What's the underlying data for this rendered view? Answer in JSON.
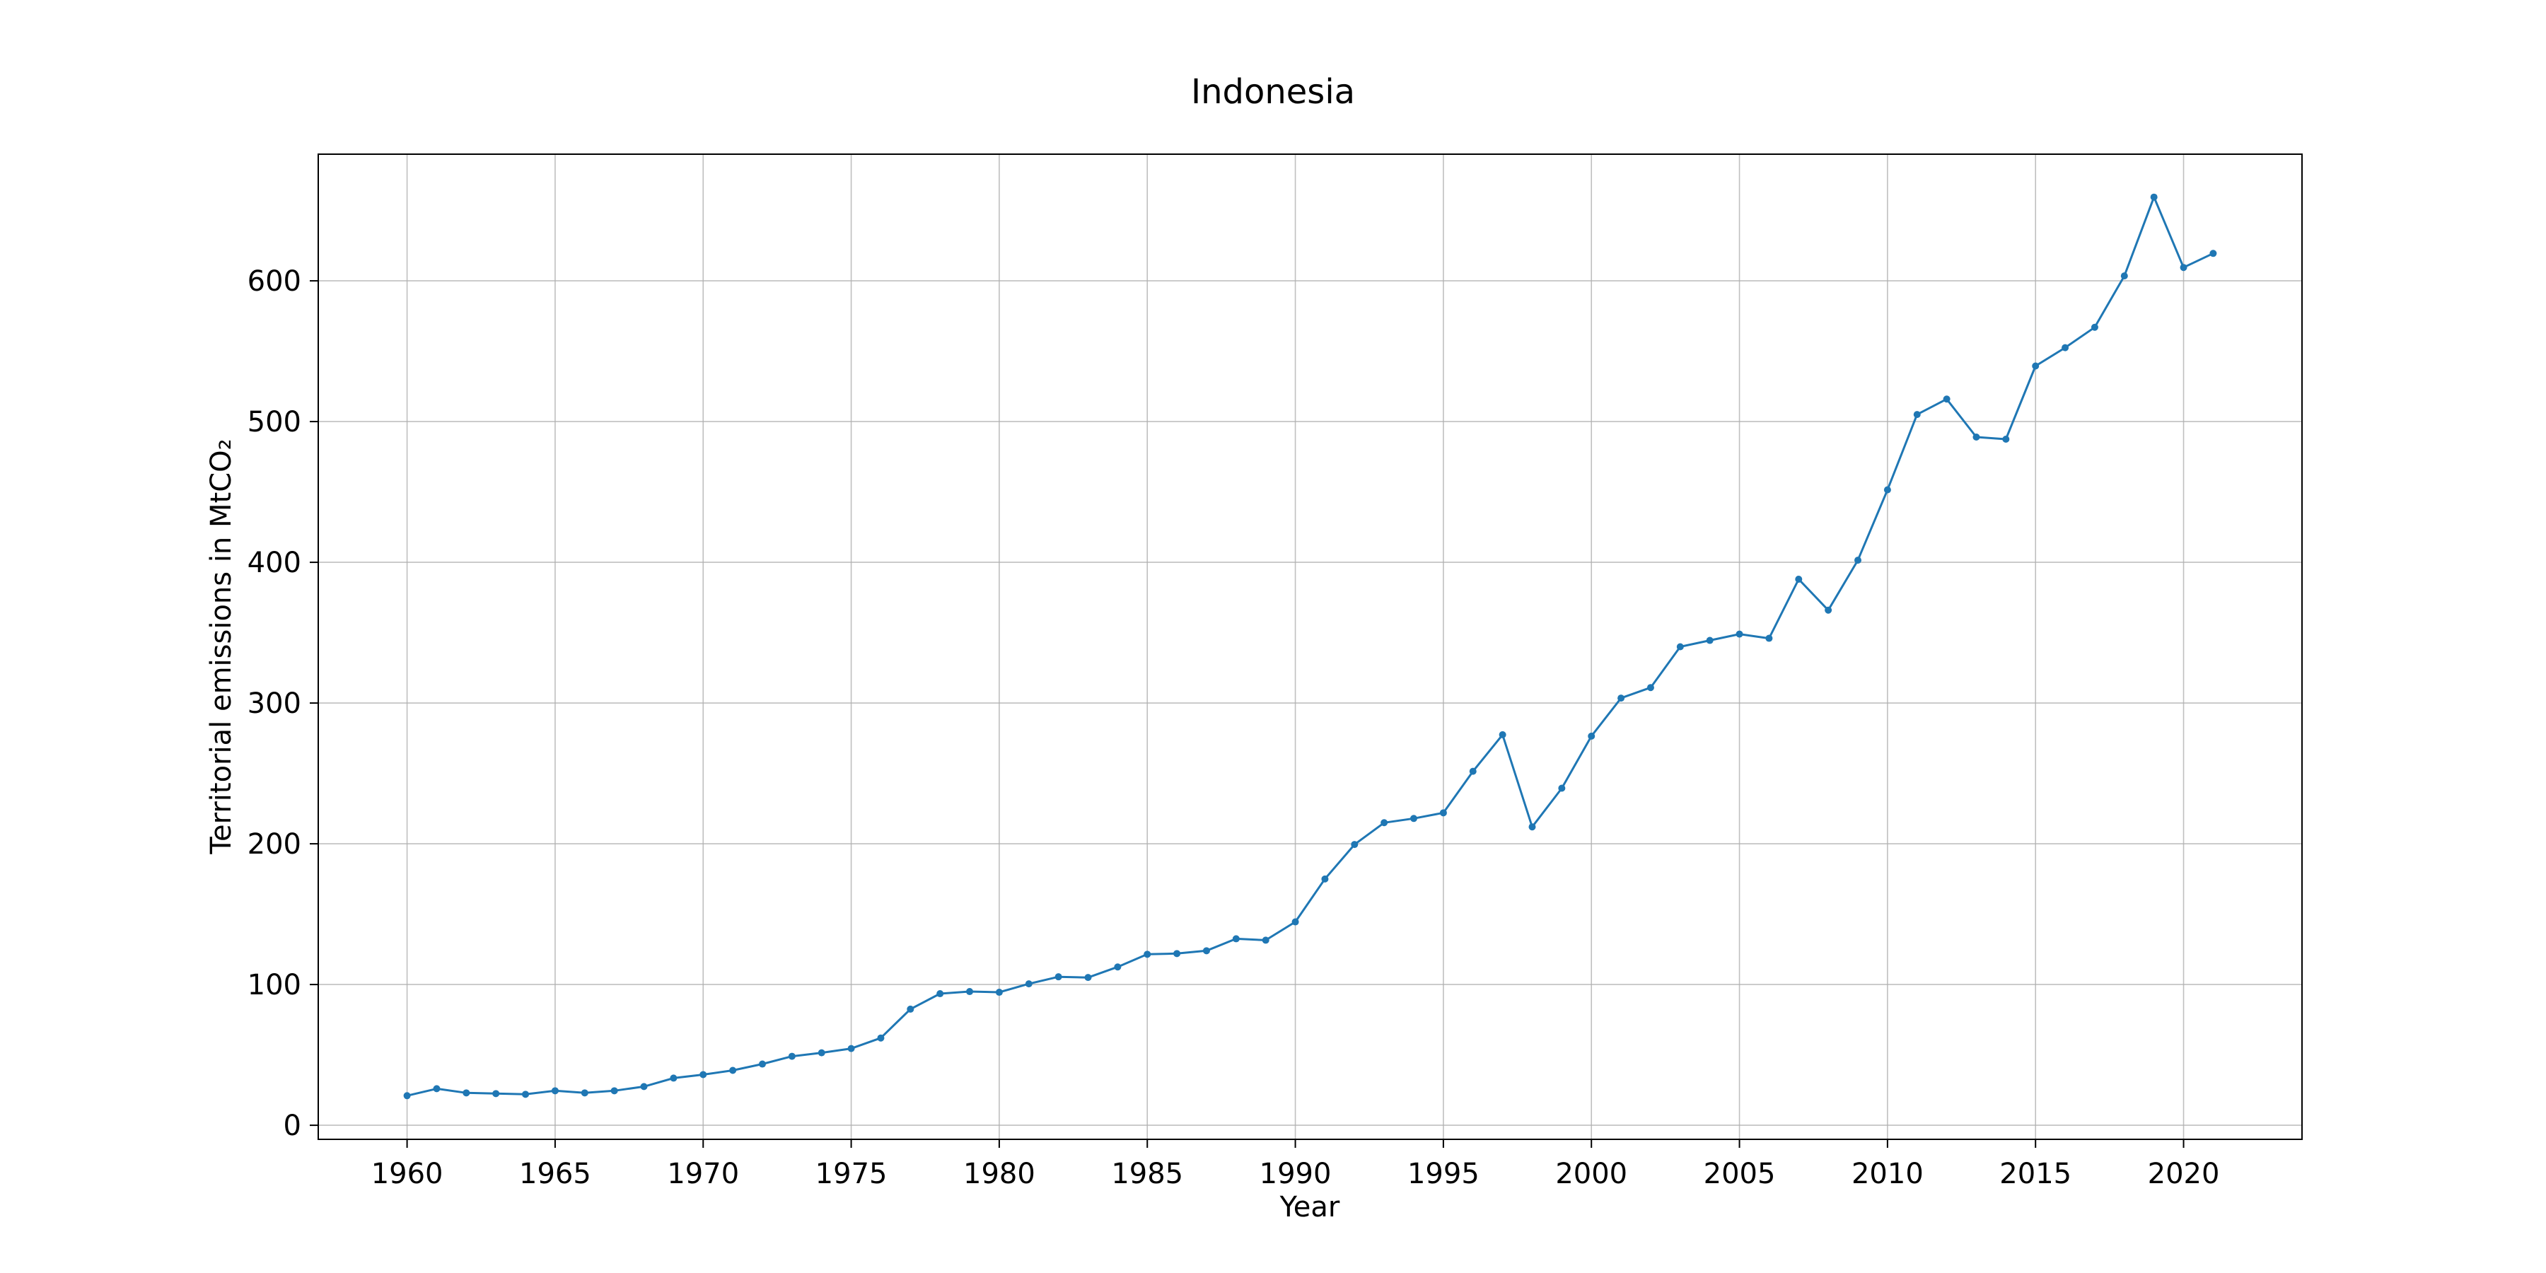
{
  "chart_data": {
    "type": "line",
    "title": "Indonesia",
    "xlabel": "Year",
    "ylabel": "Territorial emissions in MtCO₂",
    "xlim": [
      1957,
      2024
    ],
    "ylim": [
      -10,
      690
    ],
    "xticks": [
      1960,
      1965,
      1970,
      1975,
      1980,
      1985,
      1990,
      1995,
      2000,
      2005,
      2010,
      2015,
      2020
    ],
    "yticks": [
      0,
      100,
      200,
      300,
      400,
      500,
      600
    ],
    "grid": true,
    "color": "#1f77b4",
    "marker": "circle",
    "x": [
      1960,
      1961,
      1962,
      1963,
      1964,
      1965,
      1966,
      1967,
      1968,
      1969,
      1970,
      1971,
      1972,
      1973,
      1974,
      1975,
      1976,
      1977,
      1978,
      1979,
      1980,
      1981,
      1982,
      1983,
      1984,
      1985,
      1986,
      1987,
      1988,
      1989,
      1990,
      1991,
      1992,
      1993,
      1994,
      1995,
      1996,
      1997,
      1998,
      1999,
      2000,
      2001,
      2002,
      2003,
      2004,
      2005,
      2006,
      2007,
      2008,
      2009,
      2010,
      2011,
      2012,
      2013,
      2014,
      2015,
      2016,
      2017,
      2018,
      2019,
      2020,
      2021
    ],
    "y": [
      21,
      26,
      23,
      22.5,
      22,
      24.5,
      23,
      24.5,
      27.5,
      33.5,
      36,
      39,
      43.5,
      49,
      51.5,
      54.5,
      62,
      82.5,
      93.5,
      95,
      94.5,
      100.5,
      105.5,
      105,
      112.5,
      121.5,
      122,
      124,
      132.5,
      131.5,
      144.5,
      175,
      199.5,
      215,
      218,
      222,
      251.5,
      277.5,
      212,
      239.5,
      276.5,
      303.5,
      311,
      340,
      344.5,
      349,
      346,
      388,
      366,
      401.5,
      451.5,
      505,
      516,
      489,
      487.5,
      539.5,
      552.5,
      567,
      603.5,
      659.5,
      609.5,
      619.5
    ]
  }
}
